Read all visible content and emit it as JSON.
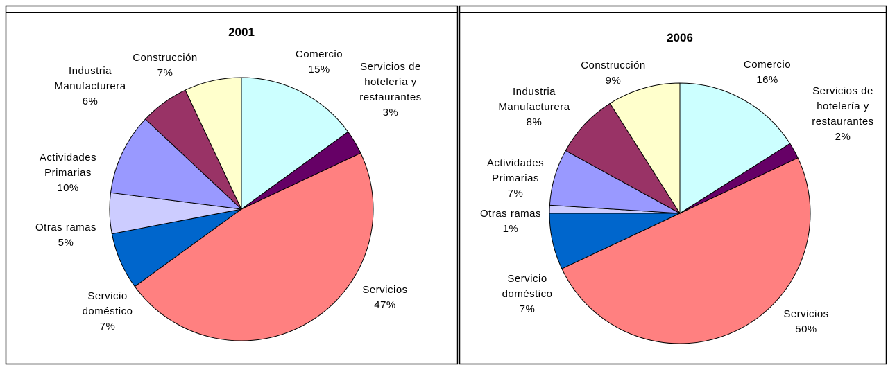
{
  "chart_data": [
    {
      "type": "pie",
      "title": "2001",
      "categories": [
        "Comercio",
        "Servicios de hotelería y restaurantes",
        "Servicios",
        "Servicio doméstico",
        "Otras ramas",
        "Actividades Primarias",
        "Industria Manufacturera",
        "Construcción"
      ],
      "values": [
        15,
        3,
        47,
        7,
        5,
        10,
        6,
        7
      ],
      "value_labels": [
        "15%",
        "3%",
        "47%",
        "7%",
        "5%",
        "10%",
        "6%",
        "7%"
      ],
      "colors": [
        "#ccffff",
        "#660066",
        "#ff8080",
        "#0066cc",
        "#ccccff",
        "#9999ff",
        "#993366",
        "#ffffcc"
      ]
    },
    {
      "type": "pie",
      "title": "2006",
      "categories": [
        "Comercio",
        "Servicios de hotelería y restaurantes",
        "Servicios",
        "Servicio doméstico",
        "Otras ramas",
        "Actividades Primarias",
        "Industria Manufacturera",
        "Construcción"
      ],
      "values": [
        16,
        2,
        50,
        7,
        1,
        7,
        8,
        9
      ],
      "value_labels": [
        "16%",
        "2%",
        "50%",
        "7%",
        "1%",
        "7%",
        "8%",
        "9%"
      ],
      "colors": [
        "#ccffff",
        "#660066",
        "#ff8080",
        "#0066cc",
        "#ccccff",
        "#9999ff",
        "#993366",
        "#ffffcc"
      ]
    }
  ]
}
